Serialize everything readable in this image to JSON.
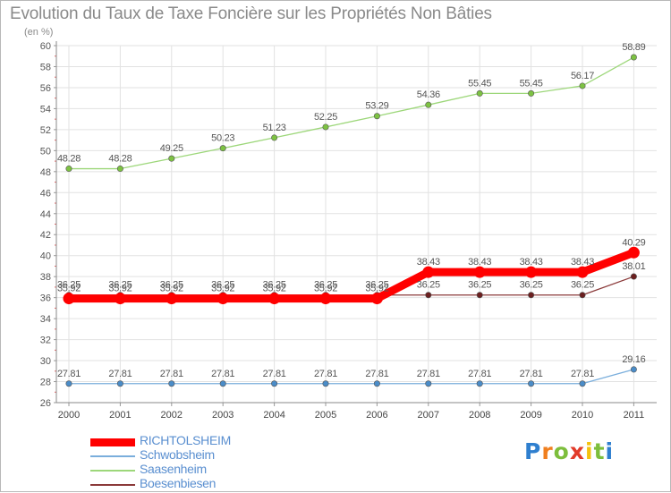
{
  "chart_data": {
    "type": "line",
    "title": "Evolution du Taux de Taxe Foncière sur les Propriétés Non Bâties",
    "subtitle": "(en %)",
    "x": [
      "2000",
      "2001",
      "2002",
      "2003",
      "2004",
      "2005",
      "2006",
      "2007",
      "2008",
      "2009",
      "2010",
      "2011"
    ],
    "yticks": [
      26,
      28,
      30,
      32,
      34,
      36,
      38,
      40,
      42,
      44,
      46,
      48,
      50,
      52,
      54,
      56,
      58,
      60
    ],
    "ylim": [
      26,
      60
    ],
    "grid": true,
    "legend_position": "bottom-left",
    "series": [
      {
        "name": "Saasenheim",
        "color": "#9dd77a",
        "marker": "#7dc242",
        "values": [
          48.28,
          48.28,
          49.25,
          50.23,
          51.23,
          52.25,
          53.29,
          54.36,
          55.45,
          55.45,
          56.17,
          58.89
        ],
        "labels": [
          "48.28",
          "48.28",
          "49.25",
          "50.23",
          "51.23",
          "52.25",
          "53.29",
          "54.36",
          "55.45",
          "55.45",
          "56.17",
          "58.89"
        ]
      },
      {
        "name": "Boesenbiesen",
        "color": "#8b3a3a",
        "marker": "#6b1f1f",
        "values": [
          36.25,
          36.25,
          36.25,
          36.25,
          36.25,
          36.25,
          36.25,
          36.25,
          36.25,
          36.25,
          36.25,
          38.01
        ],
        "labels": [
          "36.25",
          "36.25",
          "36.25",
          "36.25",
          "36.25",
          "36.25",
          "36.25",
          "36.25",
          "36.25",
          "36.25",
          "36.25",
          "38.01"
        ]
      },
      {
        "name": "RICHTOLSHEIM",
        "color": "#ff0000",
        "marker": "#ff0000",
        "values": [
          35.92,
          35.92,
          35.92,
          35.92,
          35.92,
          35.92,
          35.92,
          38.43,
          38.43,
          38.43,
          38.43,
          40.29
        ],
        "labels": [
          "35.92",
          "35.92",
          "35.92",
          "35.92",
          "35.92",
          "35.92",
          "35.92",
          "38.43",
          "38.43",
          "38.43",
          "38.43",
          "40.29"
        ]
      },
      {
        "name": "Schwobsheim",
        "color": "#7aaedc",
        "marker": "#4a8cc8",
        "values": [
          27.81,
          27.81,
          27.81,
          27.81,
          27.81,
          27.81,
          27.81,
          27.81,
          27.81,
          27.81,
          27.81,
          29.16
        ],
        "labels": [
          "27.81",
          "27.81",
          "27.81",
          "27.81",
          "27.81",
          "27.81",
          "27.81",
          "27.81",
          "27.81",
          "27.81",
          "27.81",
          "29.16"
        ]
      }
    ],
    "legend": [
      {
        "name": "RICHTOLSHEIM",
        "color": "#ff0000",
        "text_color": "#5a8fd0"
      },
      {
        "name": "Schwobsheim",
        "color": "#7aaedc",
        "text_color": "#5a8fd0"
      },
      {
        "name": "Saasenheim",
        "color": "#9dd77a",
        "text_color": "#5a8fd0"
      },
      {
        "name": "Boesenbiesen",
        "color": "#8b3a3a",
        "text_color": "#5a8fd0"
      }
    ]
  },
  "logo": {
    "letters": [
      "P",
      "r",
      "o",
      "x",
      "i",
      "t",
      "i"
    ],
    "colors": [
      "#2f7fcf",
      "#f07f1f",
      "#7dbe3c",
      "#e23b2a",
      "#f4c20d",
      "#7dbe3c",
      "#2f7fcf"
    ]
  }
}
